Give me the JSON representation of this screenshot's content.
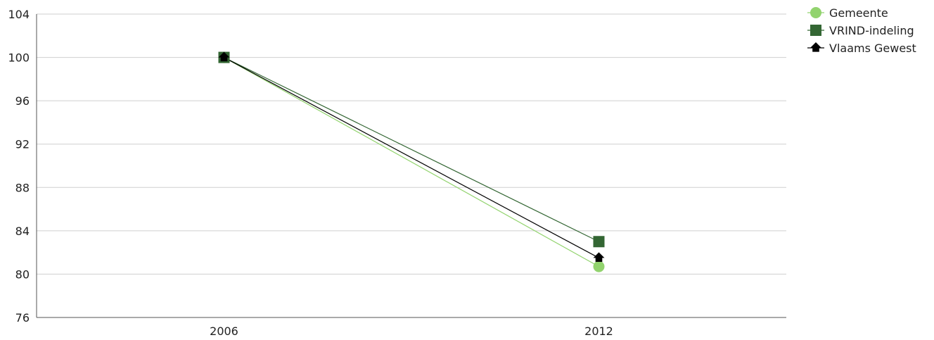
{
  "chart_data": {
    "type": "line",
    "categories": [
      "2006",
      "2012"
    ],
    "ylim": [
      76,
      104
    ],
    "yticks": [
      76,
      80,
      84,
      88,
      92,
      96,
      100,
      104
    ],
    "grid": true,
    "legend_position": "top-right",
    "series": [
      {
        "name": "Gemeente",
        "values": [
          100,
          80.7
        ],
        "color": "#92D36E",
        "marker": "circle"
      },
      {
        "name": "VRIND-indeling",
        "values": [
          100,
          83.0
        ],
        "color": "#336633",
        "marker": "square"
      },
      {
        "name": "Vlaams Gewest",
        "values": [
          100,
          81.5
        ],
        "color": "#000000",
        "marker": "triangle"
      }
    ]
  }
}
